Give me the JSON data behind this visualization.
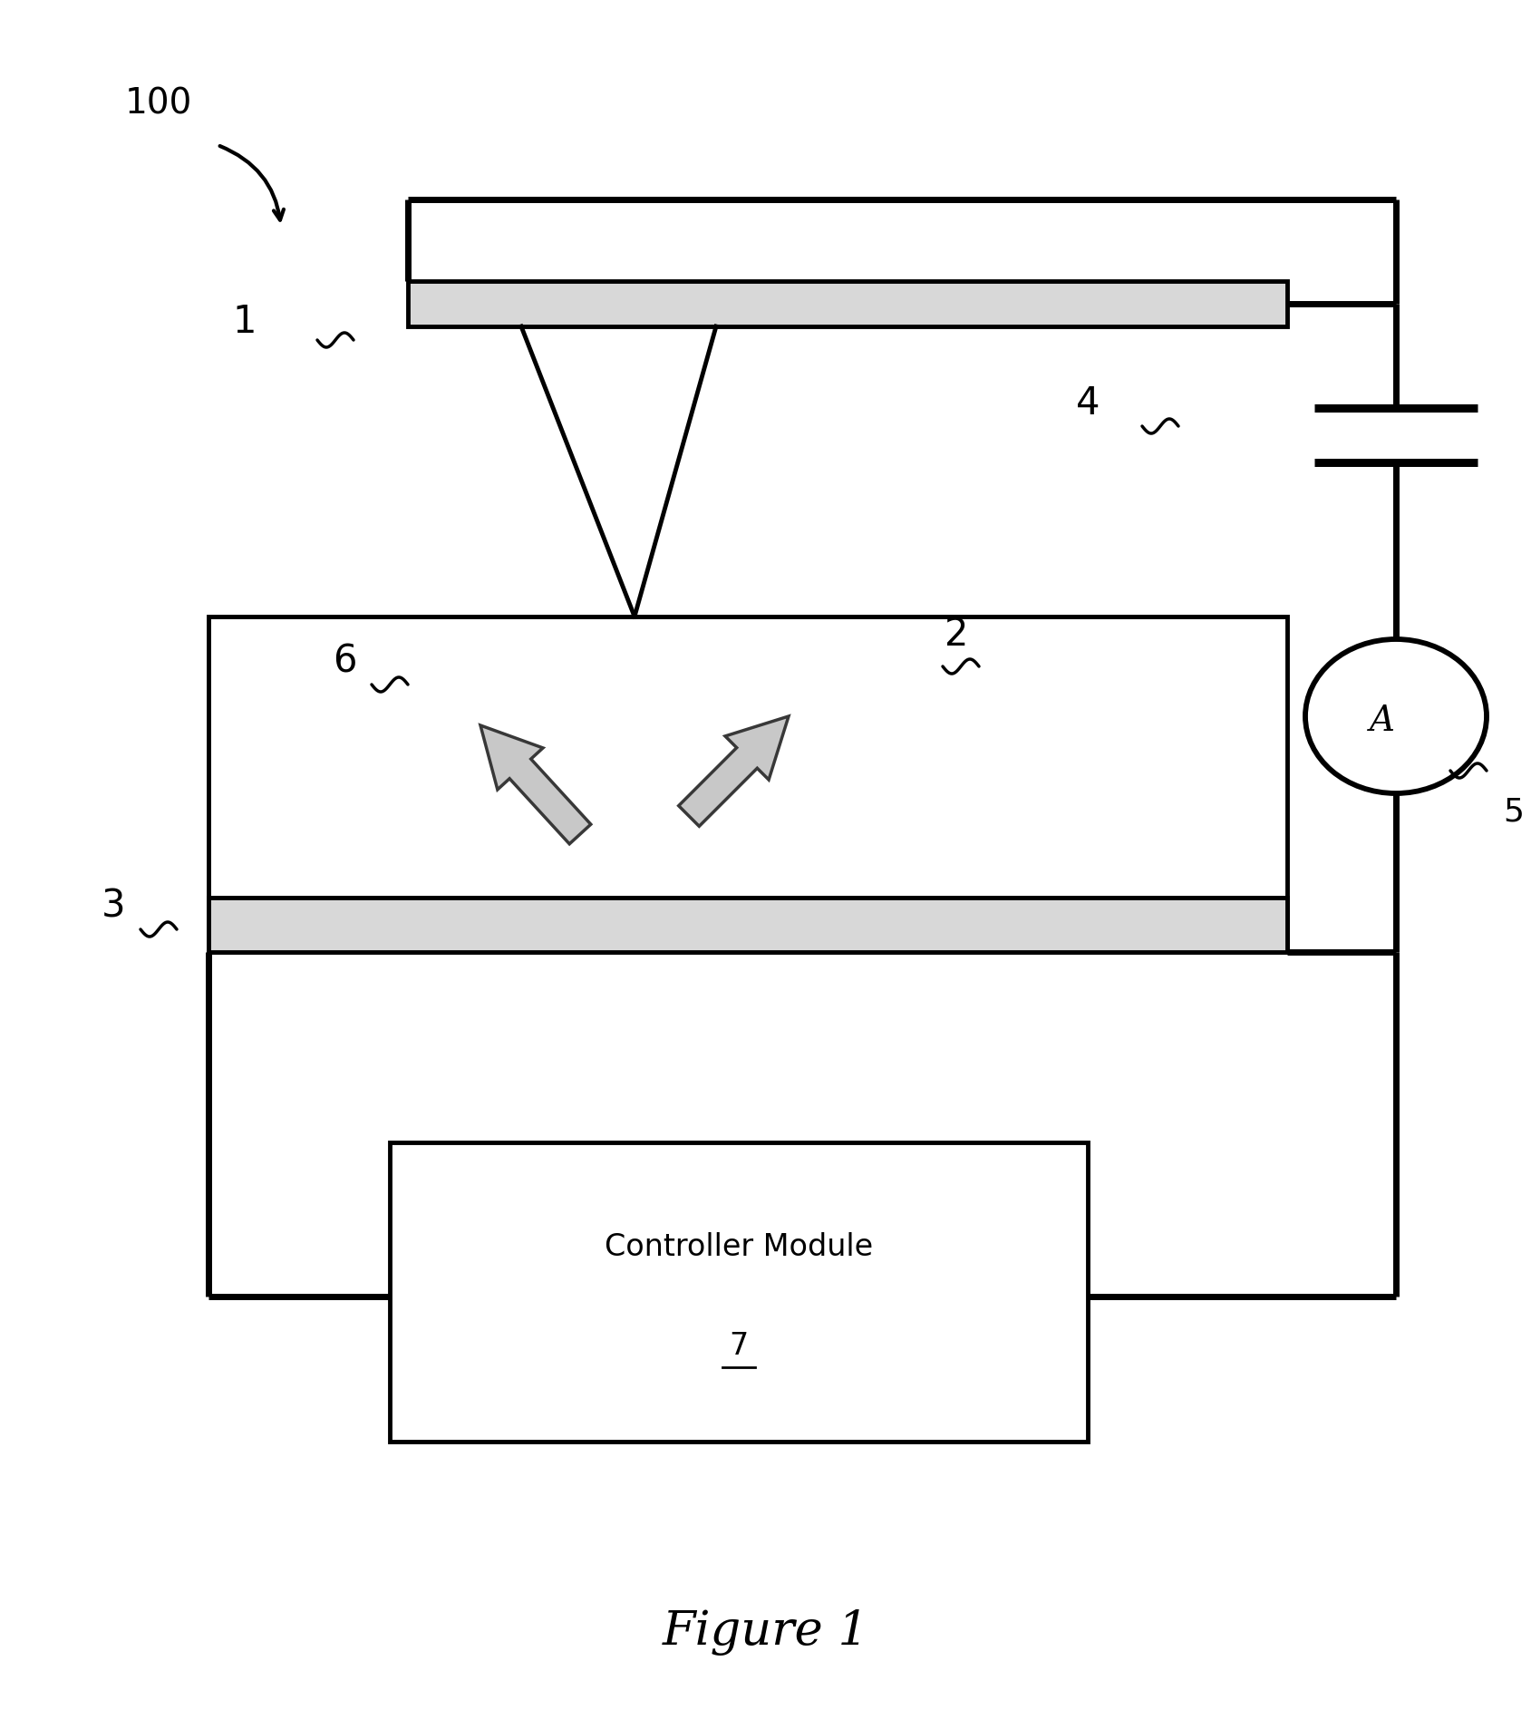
{
  "bg_color": "#ffffff",
  "line_color": "#000000",
  "light_gray": "#d8d8d8",
  "arrow_fill": "#b8b8b8",
  "arrow_edge": "#505050",
  "figure_label": "Figure 1",
  "label_100": "100",
  "label_1": "1",
  "label_2": "2",
  "label_3": "3",
  "label_4": "4",
  "label_5": "5",
  "label_6": "6",
  "label_7": "7",
  "controller_text": "Controller Module",
  "ammeter_text": "A"
}
